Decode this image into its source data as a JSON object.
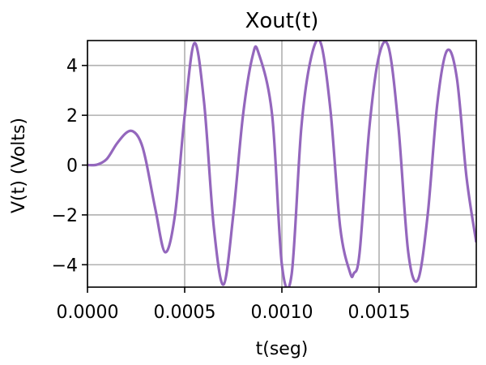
{
  "chart_data": {
    "type": "line",
    "title": "Xout(t)",
    "xlabel": "t(seg)",
    "ylabel": "V(t) (Volts)",
    "xlim": [
      0,
      0.002
    ],
    "ylim": [
      -4.9,
      5.0
    ],
    "xticks": [
      0,
      0.0005,
      0.001,
      0.0015
    ],
    "xtick_labels": [
      "0.0000",
      "0.0005",
      "0.0010",
      "0.0015"
    ],
    "yticks": [
      4,
      2,
      0,
      -2,
      -4
    ],
    "ytick_labels": [
      "4",
      "2",
      "0",
      "−2",
      "−4"
    ],
    "grid": true,
    "series": [
      {
        "color": "#9467bd",
        "x": [
          0,
          5e-05,
          0.0001,
          0.00015,
          0.0002,
          0.000235,
          0.00027,
          0.0003,
          0.00035,
          0.0004,
          0.00045,
          0.0005,
          0.00055,
          0.0006,
          0.00065,
          0.0007,
          0.00075,
          0.0008,
          0.00085,
          0.00088,
          0.00095,
          0.001,
          0.00105,
          0.0011,
          0.00115,
          0.0012,
          0.00125,
          0.0013,
          0.00135,
          0.00137,
          0.0014,
          0.00145,
          0.0015,
          0.00155,
          0.0016,
          0.00165,
          0.0017,
          0.00175,
          0.0018,
          0.00185,
          0.0019,
          0.00195,
          0.002
        ],
        "y": [
          0,
          0.02,
          0.25,
          0.85,
          1.3,
          1.35,
          1.0,
          0.2,
          -1.8,
          -3.5,
          -2.0,
          2.0,
          4.9,
          2.5,
          -2.5,
          -4.8,
          -2.0,
          2.0,
          4.4,
          4.5,
          2.0,
          -4.0,
          -4.4,
          1.5,
          4.3,
          4.9,
          2.2,
          -2.5,
          -4.3,
          -4.35,
          -3.5,
          1.5,
          4.4,
          4.7,
          1.5,
          -3.5,
          -4.6,
          -2.0,
          2.5,
          4.6,
          3.5,
          -0.5,
          -3.1
        ]
      }
    ]
  }
}
